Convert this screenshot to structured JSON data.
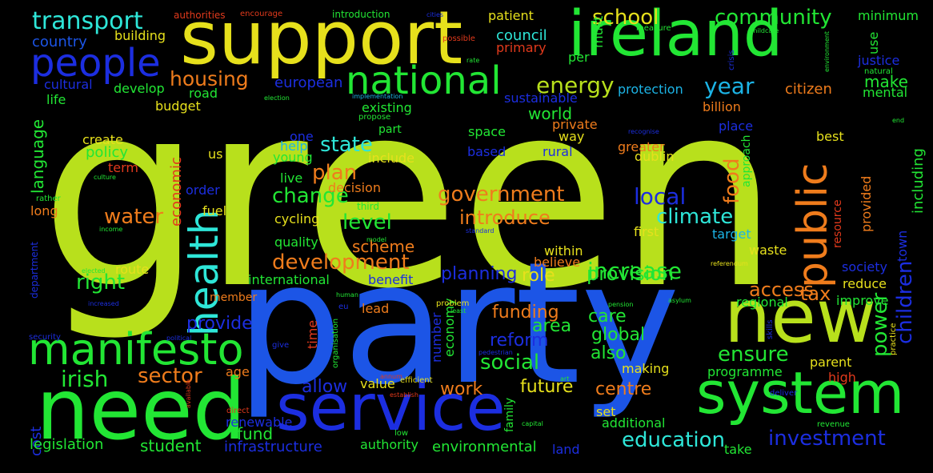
{
  "palette": {
    "lime": "#b8e01c",
    "blue": "#1c55e6",
    "yellow": "#e6e01c",
    "cyan": "#2ee6d8",
    "green": "#22e634",
    "orange": "#ef7c1c",
    "red": "#e23a1c",
    "darkblue": "#1c2ee0",
    "teal": "#1ce6a0",
    "skyblue": "#1cb4e6"
  },
  "words": [
    {
      "text": "green",
      "color": "lime"
    },
    {
      "text": "party",
      "color": "blue"
    },
    {
      "text": "support",
      "color": "yellow"
    },
    {
      "text": "ireland",
      "color": "green"
    },
    {
      "text": "need",
      "color": "green"
    },
    {
      "text": "service",
      "color": "darkblue"
    },
    {
      "text": "system",
      "color": "green"
    },
    {
      "text": "new",
      "color": "lime"
    },
    {
      "text": "manifesto",
      "color": "green"
    },
    {
      "text": "health",
      "color": "cyan"
    },
    {
      "text": "public",
      "color": "orange"
    },
    {
      "text": "people",
      "color": "darkblue"
    },
    {
      "text": "national",
      "color": "green"
    },
    {
      "text": "transport",
      "color": "cyan"
    },
    {
      "text": "school",
      "color": "yellow"
    },
    {
      "text": "community",
      "color": "green"
    },
    {
      "text": "housing",
      "color": "orange"
    },
    {
      "text": "energy",
      "color": "lime"
    },
    {
      "text": "year",
      "color": "skyblue"
    },
    {
      "text": "state",
      "color": "cyan"
    },
    {
      "text": "plan",
      "color": "orange"
    },
    {
      "text": "change",
      "color": "green"
    },
    {
      "text": "government",
      "color": "orange"
    },
    {
      "text": "introduce",
      "color": "orange"
    },
    {
      "text": "local",
      "color": "darkblue"
    },
    {
      "text": "climate",
      "color": "cyan"
    },
    {
      "text": "level",
      "color": "green"
    },
    {
      "text": "development",
      "color": "orange"
    },
    {
      "text": "water",
      "color": "orange"
    },
    {
      "text": "right",
      "color": "green"
    },
    {
      "text": "increase",
      "color": "green"
    },
    {
      "text": "ensure",
      "color": "green"
    },
    {
      "text": "social",
      "color": "green"
    },
    {
      "text": "irish",
      "color": "green"
    },
    {
      "text": "sector",
      "color": "orange"
    },
    {
      "text": "education",
      "color": "cyan"
    },
    {
      "text": "investment",
      "color": "darkblue"
    },
    {
      "text": "children",
      "color": "darkblue"
    },
    {
      "text": "power",
      "color": "green"
    },
    {
      "text": "tax",
      "color": "orange"
    },
    {
      "text": "access",
      "color": "orange"
    },
    {
      "text": "provision",
      "color": "green"
    },
    {
      "text": "food",
      "color": "orange"
    },
    {
      "text": "funding",
      "color": "orange"
    },
    {
      "text": "reform",
      "color": "darkblue"
    },
    {
      "text": "area",
      "color": "green"
    },
    {
      "text": "global",
      "color": "green"
    },
    {
      "text": "care",
      "color": "green"
    },
    {
      "text": "also",
      "color": "green"
    },
    {
      "text": "provide",
      "color": "darkblue"
    },
    {
      "text": "allow",
      "color": "darkblue"
    },
    {
      "text": "future",
      "color": "yellow"
    },
    {
      "text": "work",
      "color": "orange"
    },
    {
      "text": "centre",
      "color": "orange"
    },
    {
      "text": "planning",
      "color": "darkblue"
    },
    {
      "text": "role",
      "color": "yellow"
    },
    {
      "text": "council",
      "color": "cyan"
    },
    {
      "text": "country",
      "color": "blue"
    },
    {
      "text": "citizen",
      "color": "orange"
    },
    {
      "text": "make",
      "color": "green"
    },
    {
      "text": "world",
      "color": "green"
    },
    {
      "text": "justice",
      "color": "darkblue"
    },
    {
      "text": "language",
      "color": "green"
    },
    {
      "text": "fund",
      "color": "green"
    },
    {
      "text": "student",
      "color": "green"
    },
    {
      "text": "cost",
      "color": "darkblue"
    },
    {
      "text": "infrastructure",
      "color": "darkblue"
    },
    {
      "text": "environmental",
      "color": "green"
    },
    {
      "text": "legislation",
      "color": "green"
    },
    {
      "text": "european",
      "color": "darkblue"
    },
    {
      "text": "economic",
      "color": "red"
    },
    {
      "text": "policy",
      "color": "green"
    },
    {
      "text": "create",
      "color": "yellow"
    },
    {
      "text": "scheme",
      "color": "orange"
    },
    {
      "text": "patient",
      "color": "yellow"
    },
    {
      "text": "minimum",
      "color": "green"
    },
    {
      "text": "building",
      "color": "yellow"
    },
    {
      "text": "primary",
      "color": "red"
    },
    {
      "text": "use",
      "color": "green"
    },
    {
      "text": "per",
      "color": "green"
    },
    {
      "text": "must",
      "color": "green"
    },
    {
      "text": "develop",
      "color": "green"
    },
    {
      "text": "cultural",
      "color": "darkblue"
    },
    {
      "text": "life",
      "color": "green"
    },
    {
      "text": "road",
      "color": "green"
    },
    {
      "text": "budget",
      "color": "yellow"
    },
    {
      "text": "protection",
      "color": "skyblue"
    },
    {
      "text": "sustainable",
      "color": "darkblue"
    },
    {
      "text": "existing",
      "color": "green"
    },
    {
      "text": "mental",
      "color": "green"
    },
    {
      "text": "billion",
      "color": "orange"
    },
    {
      "text": "place",
      "color": "darkblue"
    },
    {
      "text": "best",
      "color": "yellow"
    },
    {
      "text": "greater",
      "color": "orange"
    },
    {
      "text": "dublin",
      "color": "yellow"
    },
    {
      "text": "rural",
      "color": "darkblue"
    },
    {
      "text": "space",
      "color": "green"
    },
    {
      "text": "based",
      "color": "darkblue"
    },
    {
      "text": "include",
      "color": "yellow"
    },
    {
      "text": "young",
      "color": "green"
    },
    {
      "text": "help",
      "color": "skyblue"
    },
    {
      "text": "live",
      "color": "green"
    },
    {
      "text": "decision",
      "color": "orange"
    },
    {
      "text": "third",
      "color": "green"
    },
    {
      "text": "cycling",
      "color": "yellow"
    },
    {
      "text": "quality",
      "color": "green"
    },
    {
      "text": "fuel",
      "color": "yellow"
    },
    {
      "text": "long",
      "color": "orange"
    },
    {
      "text": "term",
      "color": "red"
    },
    {
      "text": "order",
      "color": "darkblue"
    },
    {
      "text": "us",
      "color": "yellow"
    },
    {
      "text": "including",
      "color": "green"
    },
    {
      "text": "provided",
      "color": "orange"
    },
    {
      "text": "town",
      "color": "darkblue"
    },
    {
      "text": "society",
      "color": "darkblue"
    },
    {
      "text": "reduce",
      "color": "yellow"
    },
    {
      "text": "improve",
      "color": "green"
    },
    {
      "text": "regional",
      "color": "green"
    },
    {
      "text": "target",
      "color": "skyblue"
    },
    {
      "text": "waste",
      "color": "yellow"
    },
    {
      "text": "first",
      "color": "yellow"
    },
    {
      "text": "believe",
      "color": "orange"
    },
    {
      "text": "within",
      "color": "yellow"
    },
    {
      "text": "international",
      "color": "green"
    },
    {
      "text": "benefit",
      "color": "darkblue"
    },
    {
      "text": "route",
      "color": "yellow"
    },
    {
      "text": "member",
      "color": "orange"
    },
    {
      "text": "lead",
      "color": "orange"
    },
    {
      "text": "number",
      "color": "darkblue"
    },
    {
      "text": "economy",
      "color": "green"
    },
    {
      "text": "time",
      "color": "red"
    },
    {
      "text": "age",
      "color": "orange"
    },
    {
      "text": "value",
      "color": "yellow"
    },
    {
      "text": "renewable",
      "color": "darkblue"
    },
    {
      "text": "authority",
      "color": "green"
    },
    {
      "text": "land",
      "color": "darkblue"
    },
    {
      "text": "take",
      "color": "green"
    },
    {
      "text": "additional",
      "color": "green"
    },
    {
      "text": "set",
      "color": "yellow"
    },
    {
      "text": "making",
      "color": "yellow"
    },
    {
      "text": "programme",
      "color": "green"
    },
    {
      "text": "high",
      "color": "red"
    },
    {
      "text": "parent",
      "color": "yellow"
    },
    {
      "text": "family",
      "color": "green"
    },
    {
      "text": "way",
      "color": "yellow"
    },
    {
      "text": "private",
      "color": "orange"
    },
    {
      "text": "one",
      "color": "darkblue"
    },
    {
      "text": "part",
      "color": "green"
    },
    {
      "text": "approach",
      "color": "green"
    },
    {
      "text": "resource",
      "color": "red"
    },
    {
      "text": "department",
      "color": "darkblue"
    },
    {
      "text": "authorities",
      "color": "red"
    },
    {
      "text": "encourage",
      "color": "red"
    },
    {
      "text": "introduction",
      "color": "green"
    },
    {
      "text": "cities",
      "color": "darkblue"
    },
    {
      "text": "measure",
      "color": "green"
    },
    {
      "text": "childcare",
      "color": "green"
    },
    {
      "text": "possible",
      "color": "red"
    },
    {
      "text": "rate",
      "color": "green"
    },
    {
      "text": "crisis",
      "color": "darkblue"
    },
    {
      "text": "environment",
      "color": "green"
    },
    {
      "text": "natural",
      "color": "green"
    },
    {
      "text": "election",
      "color": "green"
    },
    {
      "text": "implementation",
      "color": "skyblue"
    },
    {
      "text": "propose",
      "color": "green"
    },
    {
      "text": "recognise",
      "color": "darkblue"
    },
    {
      "text": "end",
      "color": "green"
    },
    {
      "text": "rather",
      "color": "green"
    },
    {
      "text": "culture",
      "color": "green"
    },
    {
      "text": "income",
      "color": "green"
    },
    {
      "text": "standard",
      "color": "darkblue"
    },
    {
      "text": "model",
      "color": "green"
    },
    {
      "text": "elected",
      "color": "green"
    },
    {
      "text": "referendum",
      "color": "yellow"
    },
    {
      "text": "increased",
      "color": "darkblue"
    },
    {
      "text": "human",
      "color": "green"
    },
    {
      "text": "eu",
      "color": "darkblue"
    },
    {
      "text": "problem",
      "color": "yellow"
    },
    {
      "text": "least",
      "color": "green"
    },
    {
      "text": "pension",
      "color": "green"
    },
    {
      "text": "asylum",
      "color": "green"
    },
    {
      "text": "security",
      "color": "darkblue"
    },
    {
      "text": "political",
      "color": "darkblue"
    },
    {
      "text": "give",
      "color": "darkblue"
    },
    {
      "text": "organisation",
      "color": "green"
    },
    {
      "text": "annum",
      "color": "red"
    },
    {
      "text": "efficient",
      "color": "yellow"
    },
    {
      "text": "establish",
      "color": "red"
    },
    {
      "text": "pedestrian",
      "color": "darkblue"
    },
    {
      "text": "art",
      "color": "green"
    },
    {
      "text": "deliver",
      "color": "darkblue"
    },
    {
      "text": "skills",
      "color": "darkblue"
    },
    {
      "text": "practice",
      "color": "yellow"
    },
    {
      "text": "available",
      "color": "red"
    },
    {
      "text": "direct",
      "color": "red"
    },
    {
      "text": "low",
      "color": "green"
    },
    {
      "text": "capital",
      "color": "green"
    },
    {
      "text": "revenue",
      "color": "green"
    }
  ]
}
